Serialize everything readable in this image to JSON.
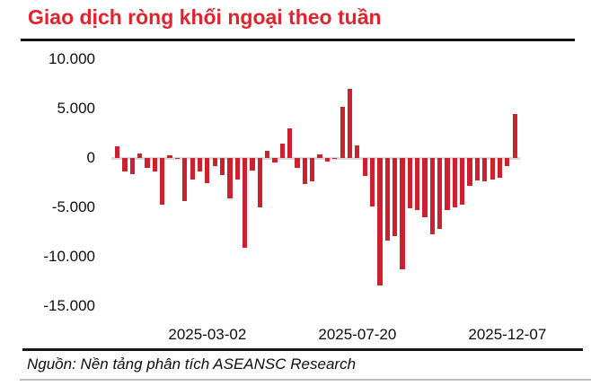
{
  "title": "Giao dịch ròng khối ngoại theo tuần",
  "source_note": "Nguồn: Nền tảng phân tích ASEANSC Research",
  "colors": {
    "title_red": "#e1232e",
    "bar_red": "#ce2130",
    "zero_line_gray": "#d9d9d9",
    "rule_black": "#161616",
    "bottom_rule_gray": "#b9bdc5"
  },
  "y_axis": {
    "tick_labels": [
      "10.000",
      "5.000",
      "0",
      "-5.000",
      "-10.000",
      "-15.000"
    ],
    "tick_values": [
      10000,
      5000,
      0,
      -5000,
      -10000,
      -15000
    ]
  },
  "x_axis": {
    "tick_labels": [
      "2025-03-02",
      "2025-07-20",
      "2025-12-07"
    ],
    "tick_bar_indices": [
      12,
      32,
      52
    ]
  },
  "chart_data": {
    "type": "bar",
    "title": "Giao dịch ròng khối ngoại theo tuần",
    "xlabel": "",
    "ylabel": "",
    "ylim": [
      -15000,
      10000
    ],
    "grid": false,
    "legend": "none",
    "bar_color": "#ce2130",
    "frequency": "weekly",
    "x_ticks": [
      {
        "index": 12,
        "label": "2025-03-02"
      },
      {
        "index": 32,
        "label": "2025-07-20"
      },
      {
        "index": 52,
        "label": "2025-12-07"
      }
    ],
    "values": [
      1200,
      -1350,
      -1600,
      500,
      -1000,
      -1350,
      -4700,
      250,
      -100,
      -4400,
      -2200,
      -1350,
      -2500,
      -800,
      -1700,
      -4100,
      -2200,
      -9100,
      -1300,
      -5000,
      700,
      -450,
      1500,
      3000,
      -1000,
      -2600,
      -2400,
      400,
      -400,
      -100,
      5200,
      7000,
      1300,
      -1800,
      -4900,
      -12900,
      -8400,
      -7900,
      -11300,
      -5100,
      -5300,
      -6000,
      -7700,
      -7200,
      -5300,
      -5000,
      -4700,
      -2800,
      -2300,
      -2400,
      -2200,
      -2000,
      -800,
      4500
    ]
  }
}
